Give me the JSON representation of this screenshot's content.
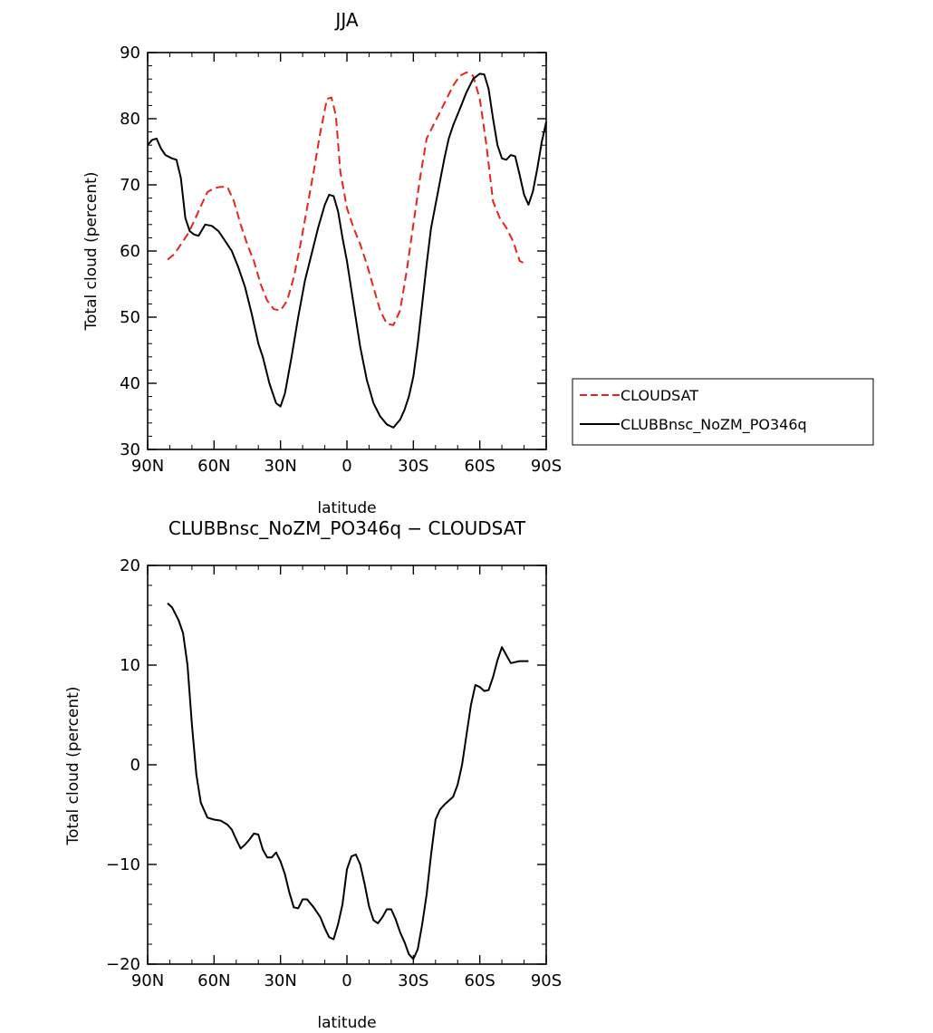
{
  "chart_data": [
    {
      "type": "line",
      "title": "JJA",
      "xlabel": "",
      "ylabel": "Total cloud (percent)",
      "xlim": [
        -90,
        90
      ],
      "ylim": [
        30,
        90
      ],
      "x_ticks": [
        -90,
        -60,
        -30,
        0,
        30,
        60,
        90
      ],
      "x_tick_labels": [
        "90N",
        "60N",
        "30N",
        "0",
        "30S",
        "60S",
        "90S"
      ],
      "y_ticks": [
        30,
        40,
        50,
        60,
        70,
        80,
        90
      ],
      "y_tick_labels": [
        "30",
        "40",
        "50",
        "60",
        "70",
        "80",
        "90"
      ],
      "legend_position": "right",
      "series": [
        {
          "name": "CLOUDSAT",
          "color": "#e8231b",
          "dash": "dashed",
          "x": [
            -81,
            -78,
            -75,
            -72,
            -69,
            -66,
            -63,
            -60,
            -57,
            -54,
            -51,
            -48,
            -45,
            -42,
            -39,
            -36,
            -33,
            -30,
            -27,
            -24,
            -21,
            -18,
            -15,
            -12,
            -9,
            -7,
            -5,
            -3,
            0,
            3,
            6,
            9,
            12,
            15,
            18,
            21,
            24,
            27,
            30,
            33,
            36,
            39,
            42,
            45,
            48,
            51,
            54,
            57,
            60,
            63,
            66,
            69,
            72,
            75,
            78,
            81
          ],
          "values": [
            58.7,
            59.5,
            61.0,
            62.5,
            64.5,
            66.8,
            68.9,
            69.5,
            69.7,
            69.7,
            67.5,
            64.0,
            61.0,
            58.5,
            55.0,
            52.5,
            51.2,
            51.0,
            52.5,
            56.0,
            61.0,
            66.5,
            72.0,
            78.0,
            83.0,
            83.2,
            80.5,
            72.0,
            66.5,
            63.5,
            61.0,
            58.0,
            54.5,
            51.0,
            49.0,
            48.8,
            51.0,
            57.0,
            64.0,
            71.0,
            77.0,
            79.0,
            81.0,
            83.0,
            85.0,
            86.5,
            87.0,
            86.5,
            83.0,
            76.0,
            67.5,
            65.0,
            63.5,
            61.5,
            58.5,
            58.0
          ]
        },
        {
          "name": "CLUBBnsc_NoZM_PO346q",
          "color": "#000000",
          "dash": "solid",
          "x": [
            -90,
            -88,
            -86,
            -84,
            -82,
            -79,
            -77,
            -75,
            -73,
            -71,
            -69,
            -67,
            -64,
            -61,
            -58,
            -55,
            -52,
            -49,
            -46,
            -43,
            -40,
            -38,
            -35,
            -32,
            -30,
            -28,
            -25,
            -22,
            -19,
            -16,
            -13,
            -10,
            -8,
            -6,
            -4,
            -2,
            0,
            3,
            6,
            9,
            12,
            15,
            18,
            21,
            24,
            26,
            28,
            30,
            32,
            34,
            36,
            38,
            40,
            42,
            44,
            46,
            48,
            51,
            54,
            57,
            60,
            62,
            64,
            66,
            68,
            70,
            72,
            74,
            76,
            78,
            80,
            82,
            84,
            86,
            88,
            90
          ],
          "values": [
            76.0,
            76.8,
            77.0,
            75.5,
            74.5,
            74.0,
            73.8,
            71.0,
            65.0,
            63.0,
            62.5,
            62.3,
            64.0,
            63.8,
            63.0,
            61.5,
            60.0,
            57.5,
            54.5,
            50.5,
            46.0,
            44.0,
            40.0,
            37.0,
            36.5,
            38.5,
            44.0,
            50.0,
            55.5,
            59.5,
            63.5,
            67.0,
            68.5,
            68.3,
            66.0,
            62.0,
            58.5,
            52.0,
            45.5,
            40.5,
            37.0,
            35.0,
            33.8,
            33.3,
            34.5,
            36.0,
            38.0,
            41.0,
            46.0,
            52.0,
            58.0,
            63.5,
            67.0,
            70.5,
            74.0,
            77.0,
            79.0,
            81.5,
            84.0,
            86.0,
            86.8,
            86.7,
            84.5,
            80.0,
            76.0,
            74.0,
            73.8,
            74.5,
            74.3,
            71.5,
            68.5,
            67.0,
            69.0,
            72.5,
            76.5,
            79.5
          ]
        }
      ]
    },
    {
      "type": "line",
      "title": "CLUBBnsc_NoZM_PO346q − CLOUDSAT",
      "xlabel": "latitude",
      "ylabel": "Total cloud (percent)",
      "xlim": [
        -90,
        90
      ],
      "ylim": [
        -20,
        20
      ],
      "x_ticks": [
        -90,
        -60,
        -30,
        0,
        30,
        60,
        90
      ],
      "x_tick_labels": [
        "90N",
        "60N",
        "30N",
        "0",
        "30S",
        "60S",
        "90S"
      ],
      "y_ticks": [
        -20,
        -10,
        0,
        10,
        20
      ],
      "y_tick_labels": [
        "−20",
        "−10",
        "0",
        "10",
        "20"
      ],
      "series": [
        {
          "color": "#000000",
          "dash": "solid",
          "x": [
            -81,
            -79,
            -76,
            -74,
            -72,
            -70,
            -68,
            -66,
            -63,
            -60,
            -57,
            -54,
            -52,
            -50,
            -48,
            -46,
            -44,
            -42,
            -40,
            -38,
            -36,
            -34,
            -32,
            -30,
            -28,
            -26,
            -24,
            -22,
            -20,
            -18,
            -15,
            -12,
            -10,
            -8,
            -6,
            -4,
            -2,
            0,
            2,
            4,
            6,
            8,
            10,
            12,
            14,
            16,
            18,
            20,
            22,
            24,
            26,
            28,
            30,
            32,
            34,
            36,
            38,
            40,
            42,
            44,
            46,
            48,
            50,
            52,
            54,
            56,
            58,
            60,
            62,
            64,
            66,
            68,
            70,
            72,
            74,
            76,
            78,
            80,
            82
          ],
          "values": [
            16.2,
            15.8,
            14.5,
            13.2,
            10.0,
            4.0,
            -1.0,
            -3.8,
            -5.3,
            -5.5,
            -5.6,
            -6.0,
            -6.5,
            -7.5,
            -8.4,
            -8.0,
            -7.5,
            -6.9,
            -7.0,
            -8.5,
            -9.3,
            -9.3,
            -8.8,
            -9.7,
            -11.0,
            -12.8,
            -14.3,
            -14.4,
            -13.5,
            -13.5,
            -14.3,
            -15.3,
            -16.4,
            -17.3,
            -17.5,
            -16.0,
            -14.0,
            -10.5,
            -9.2,
            -9.0,
            -10.0,
            -12.0,
            -14.2,
            -15.6,
            -15.9,
            -15.3,
            -14.5,
            -14.5,
            -15.5,
            -16.8,
            -17.8,
            -19.0,
            -19.5,
            -18.5,
            -16.0,
            -13.0,
            -9.0,
            -5.5,
            -4.5,
            -4.0,
            -3.6,
            -3.2,
            -2.0,
            0.0,
            3.0,
            6.0,
            8.0,
            7.8,
            7.4,
            7.5,
            8.8,
            10.5,
            11.8,
            11.0,
            10.2,
            10.3,
            10.4,
            10.4,
            10.4
          ]
        }
      ]
    }
  ]
}
